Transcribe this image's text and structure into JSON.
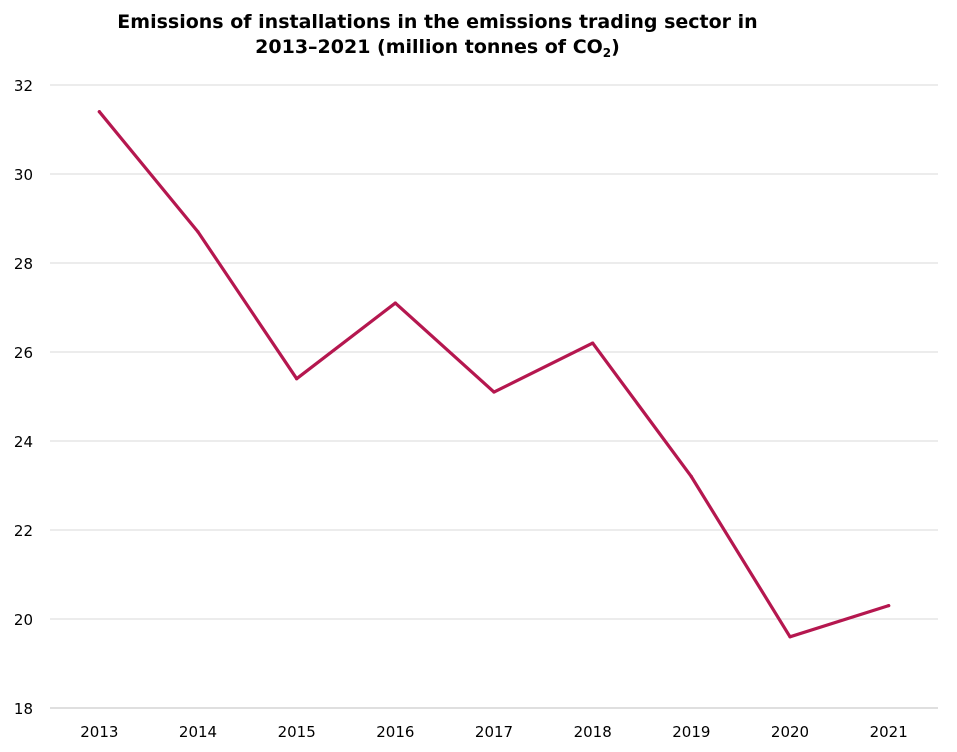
{
  "chart_data": {
    "type": "line",
    "title_line1": "Emissions of installations in the emissions trading sector in",
    "title_line2_pre": "2013–2021 (million tonnes of CO",
    "title_line2_sub": "2",
    "title_line2_post": ")",
    "xlabel": "",
    "ylabel": "",
    "categories": [
      "2013",
      "2014",
      "2015",
      "2016",
      "2017",
      "2018",
      "2019",
      "2020",
      "2021"
    ],
    "series": [
      {
        "values": [
          31.4,
          28.7,
          25.4,
          27.1,
          25.1,
          26.2,
          23.2,
          19.6,
          20.3
        ],
        "color": "#b5174f"
      }
    ],
    "ylim": [
      18,
      32
    ],
    "yticks": [
      18,
      20,
      22,
      24,
      26,
      28,
      30,
      32
    ],
    "grid": true,
    "grid_color": "#d9d9d9",
    "legend": "none"
  }
}
